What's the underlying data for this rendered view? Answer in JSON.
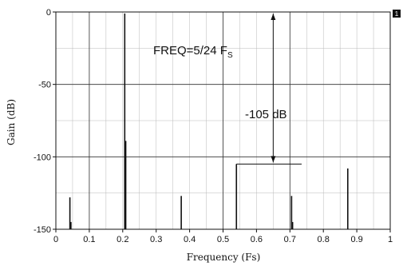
{
  "chart_data": {
    "type": "line",
    "xlabel": "Frequency (Fs)",
    "ylabel": "Gain (dB)",
    "xlim": [
      0,
      1
    ],
    "ylim": [
      -150,
      0
    ],
    "xticks": [
      "0",
      "0.1",
      "0.2",
      "0.3",
      "0.4",
      "0.5",
      "0.6",
      "0.7",
      "0.8",
      "0.9",
      "1"
    ],
    "yticks": [
      "0",
      "-50",
      "-100",
      "-150"
    ],
    "ytick_values": [
      0,
      -50,
      -100,
      -150
    ],
    "grid": true,
    "colors": {
      "line": "#111111",
      "grid": "#b8b8b8",
      "gridMajor": "#333333",
      "background": "#ffffff"
    },
    "series": [
      {
        "type": "spectral-lines",
        "points": [
          {
            "x": 0.008,
            "y": -150
          },
          {
            "x": 0.042,
            "y": -128
          },
          {
            "x": 0.045,
            "y": -145
          },
          {
            "x": 0.206,
            "y": -1
          },
          {
            "x": 0.209,
            "y": -89
          },
          {
            "x": 0.375,
            "y": -127
          },
          {
            "x": 0.54,
            "y": -105
          },
          {
            "x": 0.705,
            "y": -127
          },
          {
            "x": 0.708,
            "y": -145
          },
          {
            "x": 0.873,
            "y": -108
          }
        ]
      }
    ],
    "annotations": {
      "freq_main": "FREQ=5/24 F",
      "freq_sub": "S",
      "span_label": "-105 dB",
      "span_x": 0.65,
      "span_top": 0,
      "span_bottom": -105
    },
    "badge": "1"
  }
}
